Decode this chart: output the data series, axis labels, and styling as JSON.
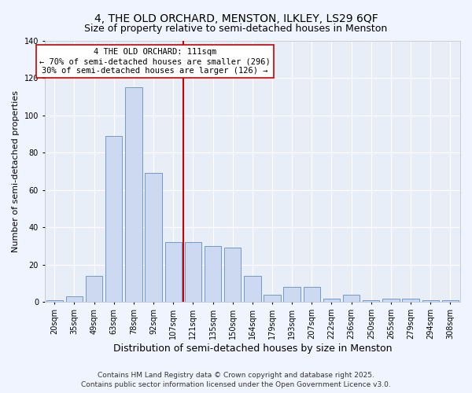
{
  "title": "4, THE OLD ORCHARD, MENSTON, ILKLEY, LS29 6QF",
  "subtitle": "Size of property relative to semi-detached houses in Menston",
  "xlabel": "Distribution of semi-detached houses by size in Menston",
  "ylabel": "Number of semi-detached properties",
  "bar_labels": [
    "20sqm",
    "35sqm",
    "49sqm",
    "63sqm",
    "78sqm",
    "92sqm",
    "107sqm",
    "121sqm",
    "135sqm",
    "150sqm",
    "164sqm",
    "179sqm",
    "193sqm",
    "207sqm",
    "222sqm",
    "236sqm",
    "250sqm",
    "265sqm",
    "279sqm",
    "294sqm",
    "308sqm"
  ],
  "bar_values": [
    1,
    3,
    14,
    89,
    115,
    69,
    32,
    32,
    30,
    29,
    14,
    4,
    8,
    8,
    2,
    4,
    1,
    2,
    2,
    1,
    1
  ],
  "bar_color": "#ccd9f0",
  "bar_edge_color": "#7099cc",
  "vline_x": 7,
  "vline_color": "#cc0000",
  "annotation_title": "4 THE OLD ORCHARD: 111sqm",
  "annotation_line1": "← 70% of semi-detached houses are smaller (296)",
  "annotation_line2": "30% of semi-detached houses are larger (126) →",
  "annotation_box_facecolor": "#ffffff",
  "annotation_box_edgecolor": "#cc0000",
  "ylim": [
    0,
    140
  ],
  "yticks": [
    0,
    20,
    40,
    60,
    80,
    100,
    120,
    140
  ],
  "background_color": "#f0f4ff",
  "plot_bg_color": "#e8eef8",
  "grid_color": "#ffffff",
  "footer1": "Contains HM Land Registry data © Crown copyright and database right 2025.",
  "footer2": "Contains public sector information licensed under the Open Government Licence v3.0.",
  "title_fontsize": 10,
  "subtitle_fontsize": 9,
  "xlabel_fontsize": 9,
  "ylabel_fontsize": 8,
  "tick_fontsize": 7,
  "footer_fontsize": 6.5,
  "annot_fontsize": 7.5
}
